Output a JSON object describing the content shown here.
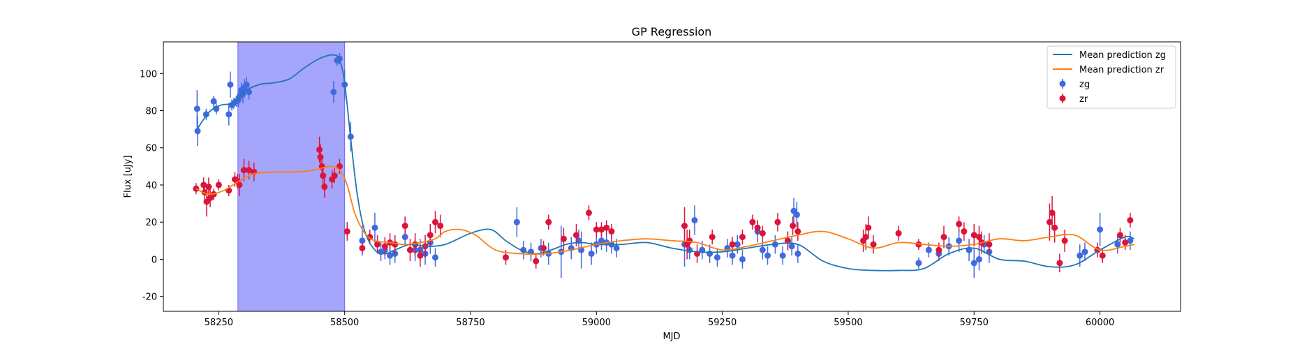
{
  "chart_data": {
    "type": "scatter",
    "title": "GP Regression",
    "xlabel": "MJD",
    "ylabel": "Flux [uJy]",
    "xlim": [
      58140,
      60160
    ],
    "ylim": [
      -28,
      117
    ],
    "x_ticks": [
      58250,
      58500,
      58750,
      59000,
      59250,
      59500,
      59750,
      60000
    ],
    "y_ticks": [
      -20,
      0,
      20,
      40,
      60,
      80,
      100
    ],
    "shaded_region": {
      "x_start": 58288,
      "x_end": 58500,
      "color": "#a5a5fb"
    },
    "legend": {
      "placement": "top-right",
      "entries": [
        {
          "label": "Mean prediction zg",
          "kind": "line",
          "color": "#1f77b4"
        },
        {
          "label": "Mean prediction zr",
          "kind": "line",
          "color": "#ff7f0e"
        },
        {
          "label": "zg",
          "kind": "errorbar",
          "color": "#4169e1"
        },
        {
          "label": "zr",
          "kind": "errorbar",
          "color": "#dc143c"
        }
      ]
    },
    "series": [
      {
        "name": "Mean prediction zg",
        "kind": "line",
        "color": "#1f77b4",
        "x": [
          58205,
          58230,
          58255,
          58280,
          58300,
          58330,
          58360,
          58390,
          58420,
          58450,
          58478,
          58490,
          58500,
          58512,
          58525,
          58540,
          58560,
          58580,
          58600,
          58630,
          58660,
          58700,
          58750,
          58790,
          58820,
          58850,
          58880,
          58910,
          58940,
          58970,
          59000,
          59050,
          59100,
          59150,
          59200,
          59250,
          59300,
          59350,
          59400,
          59450,
          59500,
          59550,
          59600,
          59650,
          59700,
          59750,
          59800,
          59850,
          59900,
          59950,
          60000,
          60050,
          60068
        ],
        "y": [
          69,
          79,
          83,
          84,
          90,
          94,
          95,
          97,
          103,
          108,
          110,
          107,
          95,
          65,
          35,
          15,
          5,
          3,
          5,
          8,
          7,
          8,
          14,
          16,
          10,
          5,
          3,
          5,
          8,
          9,
          8,
          8,
          9,
          6,
          4,
          4,
          6,
          8,
          8,
          -1,
          -5,
          -6,
          -6,
          -5,
          3,
          6,
          0,
          -1,
          -4,
          -3,
          5,
          12,
          11
        ]
      },
      {
        "name": "Mean prediction zr",
        "kind": "line",
        "color": "#ff7f0e",
        "x": [
          58205,
          58230,
          58260,
          58290,
          58320,
          58360,
          58400,
          58440,
          58470,
          58490,
          58505,
          58520,
          58540,
          58560,
          58590,
          58620,
          58650,
          58680,
          58700,
          58730,
          58760,
          58800,
          58850,
          58900,
          58950,
          59000,
          59050,
          59100,
          59150,
          59200,
          59250,
          59300,
          59350,
          59400,
          59450,
          59500,
          59550,
          59600,
          59650,
          59700,
          59750,
          59800,
          59850,
          59900,
          59950,
          60000,
          60050,
          60068
        ],
        "y": [
          38,
          35,
          37,
          42,
          46,
          47,
          47,
          48,
          50,
          48,
          40,
          25,
          14,
          10,
          9,
          8,
          9,
          11,
          15,
          16,
          13,
          5,
          3,
          3,
          5,
          8,
          10,
          11,
          10,
          9,
          5,
          7,
          10,
          13,
          15,
          11,
          6,
          9,
          8,
          7,
          8,
          11,
          10,
          12,
          13,
          5,
          7,
          8
        ]
      },
      {
        "name": "zg",
        "kind": "errorbar",
        "color": "#4169e1",
        "x": [
          58207,
          58208,
          58225,
          58240,
          58245,
          58270,
          58273,
          58276,
          58280,
          58285,
          58289,
          58292,
          58295,
          58298,
          58301,
          58305,
          58310,
          58478,
          58485,
          58490,
          58500,
          58512,
          58535,
          58560,
          58572,
          58580,
          58590,
          58600,
          58620,
          58640,
          58650,
          58660,
          58670,
          58680,
          58842,
          58855,
          58870,
          58890,
          58905,
          58930,
          58950,
          58965,
          58970,
          58990,
          59000,
          59010,
          59020,
          59030,
          59040,
          59175,
          59185,
          59195,
          59210,
          59225,
          59240,
          59260,
          59270,
          59280,
          59290,
          59320,
          59330,
          59340,
          59355,
          59370,
          59380,
          59388,
          59392,
          59398,
          59400,
          59640,
          59660,
          59680,
          59700,
          59720,
          59740,
          59750,
          59760,
          59770,
          59780,
          59960,
          59970,
          60000,
          60035,
          60060
        ],
        "y": [
          81,
          69,
          78,
          85,
          81,
          78,
          94,
          83,
          84,
          85,
          86,
          88,
          91,
          89,
          92,
          94,
          90,
          90,
          107,
          108,
          94,
          66,
          10,
          17,
          4,
          5,
          2,
          3,
          12,
          5,
          5,
          3,
          9,
          1,
          20,
          5,
          4,
          6,
          3,
          4,
          6,
          10,
          5,
          3,
          8,
          10,
          9,
          8,
          6,
          8,
          5,
          21,
          5,
          3,
          1,
          6,
          2,
          8,
          0,
          15,
          5,
          2,
          8,
          2,
          10,
          7,
          26,
          24,
          3,
          -2,
          5,
          3,
          7,
          10,
          5,
          -2,
          0,
          8,
          4,
          2,
          4,
          16,
          8,
          10
        ],
        "err": [
          10,
          8,
          3,
          3,
          3,
          6,
          7,
          3,
          3,
          3,
          4,
          4,
          4,
          5,
          5,
          4,
          4,
          6,
          3,
          3,
          8,
          8,
          8,
          8,
          5,
          5,
          5,
          5,
          5,
          6,
          6,
          6,
          6,
          5,
          8,
          5,
          5,
          5,
          6,
          14,
          6,
          6,
          10,
          6,
          5,
          5,
          5,
          5,
          5,
          12,
          5,
          8,
          5,
          5,
          5,
          5,
          5,
          5,
          5,
          6,
          5,
          5,
          5,
          5,
          5,
          5,
          7,
          7,
          5,
          3,
          4,
          4,
          5,
          6,
          6,
          8,
          6,
          5,
          6,
          6,
          5,
          9,
          5,
          5
        ]
      },
      {
        "name": "zr",
        "kind": "errorbar",
        "color": "#dc143c",
        "x": [
          58205,
          58220,
          58222,
          58226,
          58230,
          58233,
          58240,
          58250,
          58270,
          58282,
          58287,
          58291,
          58300,
          58310,
          58320,
          58450,
          58452,
          58455,
          58457,
          58460,
          58475,
          58480,
          58490,
          58505,
          58535,
          58550,
          58565,
          58580,
          58590,
          58600,
          58620,
          58630,
          58640,
          58650,
          58660,
          58670,
          58680,
          58690,
          58820,
          58880,
          58895,
          58905,
          58935,
          58960,
          58985,
          59000,
          59010,
          59020,
          59030,
          59175,
          59180,
          59185,
          59200,
          59230,
          59270,
          59290,
          59310,
          59320,
          59330,
          59360,
          59380,
          59390,
          59400,
          59530,
          59535,
          59540,
          59550,
          59600,
          59640,
          59680,
          59690,
          59720,
          59730,
          59750,
          59760,
          59765,
          59780,
          59900,
          59905,
          59910,
          59920,
          59930,
          59995,
          60005,
          60040,
          60050,
          60060
        ],
        "y": [
          38,
          40,
          36,
          31,
          39,
          33,
          35,
          40,
          37,
          43,
          42,
          40,
          48,
          48,
          47,
          59,
          55,
          50,
          45,
          39,
          43,
          45,
          50,
          15,
          6,
          12,
          8,
          7,
          9,
          8,
          18,
          5,
          8,
          2,
          7,
          13,
          20,
          18,
          1,
          -1,
          6,
          20,
          11,
          13,
          25,
          16,
          16,
          17,
          15,
          18,
          8,
          10,
          3,
          12,
          8,
          12,
          20,
          17,
          14,
          20,
          10,
          18,
          15,
          10,
          12,
          17,
          8,
          14,
          8,
          5,
          12,
          19,
          15,
          13,
          12,
          9,
          8,
          20,
          25,
          17,
          -2,
          10,
          5,
          2,
          13,
          9,
          21
        ],
        "err": [
          3,
          4,
          4,
          8,
          5,
          5,
          3,
          3,
          3,
          4,
          4,
          6,
          6,
          5,
          5,
          7,
          7,
          6,
          6,
          6,
          5,
          4,
          4,
          5,
          3,
          4,
          5,
          5,
          5,
          5,
          5,
          6,
          6,
          6,
          6,
          6,
          6,
          6,
          4,
          4,
          4,
          4,
          6,
          6,
          4,
          4,
          4,
          4,
          4,
          10,
          8,
          6,
          5,
          4,
          4,
          4,
          4,
          4,
          4,
          5,
          5,
          5,
          5,
          6,
          7,
          6,
          5,
          4,
          3,
          4,
          6,
          4,
          5,
          6,
          6,
          6,
          6,
          10,
          9,
          8,
          5,
          6,
          4,
          4,
          4,
          4,
          4
        ]
      }
    ]
  }
}
